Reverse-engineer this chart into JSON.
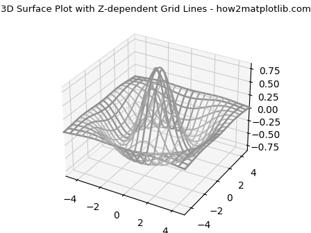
{
  "title": "3D Surface Plot with Z-dependent Grid Lines - how2matplotlib.com",
  "title_fontsize": 9.5,
  "x_range": [
    -5,
    5
  ],
  "y_range": [
    -5,
    5
  ],
  "n_points": 200,
  "n_lines": 20,
  "zlim": [
    -0.85,
    0.85
  ],
  "zticks": [
    0.75,
    0.5,
    0.25,
    0.0,
    -0.25,
    -0.5,
    -0.75
  ],
  "line_color_dark": [
    0.0,
    0.0,
    0.0
  ],
  "line_color_light": [
    0.7,
    0.7,
    0.7
  ],
  "background_color": "#ffffff",
  "pane_color": [
    0.93,
    0.93,
    0.93,
    1.0
  ],
  "figsize": [
    4.48,
    3.36
  ],
  "dpi": 100,
  "elev": 30,
  "azim": -60
}
